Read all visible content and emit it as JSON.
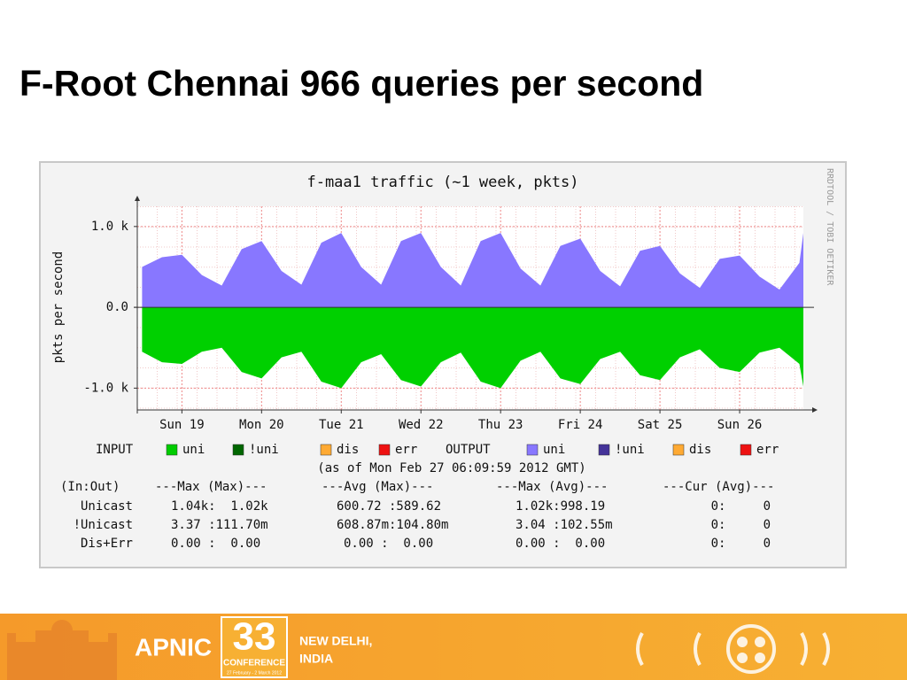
{
  "slide_title": "F-Root Chennai 966 queries per second",
  "chart_data": {
    "type": "area",
    "title": "f-maa1 traffic (~1 week, pkts)",
    "y_label": "pkts per second",
    "side_text": "RRDTOOL / TOBI OETIKER",
    "x": [
      0.5,
      0.75,
      1,
      1.25,
      1.5,
      1.75,
      2,
      2.25,
      2.5,
      2.75,
      3,
      3.25,
      3.5,
      3.75,
      4,
      4.25,
      4.5,
      4.75,
      5,
      5.25,
      5.5,
      5.75,
      6,
      6.25,
      6.5,
      6.75,
      7,
      7.25,
      7.5,
      7.75,
      8,
      8.25,
      8.5,
      8.75,
      8.8
    ],
    "xlim": [
      0.44,
      8.8
    ],
    "xticks": [
      {
        "value": 1,
        "label": "Sun 19"
      },
      {
        "value": 2,
        "label": "Mon 20"
      },
      {
        "value": 3,
        "label": "Tue 21"
      },
      {
        "value": 4,
        "label": "Wed 22"
      },
      {
        "value": 5,
        "label": "Thu 23"
      },
      {
        "value": 6,
        "label": "Fri 24"
      },
      {
        "value": 7,
        "label": "Sat 25"
      },
      {
        "value": 8,
        "label": "Sun 26"
      }
    ],
    "ylim": [
      -1270,
      1250
    ],
    "yticks": [
      {
        "value": 1000,
        "label": "1.0 k"
      },
      {
        "value": 0,
        "label": "0.0"
      },
      {
        "value": -1000,
        "label": "-1.0 k"
      }
    ],
    "grid": true,
    "series": [
      {
        "color": "#8877ff",
        "values": [
          500,
          620,
          650,
          400,
          270,
          720,
          820,
          450,
          280,
          800,
          920,
          500,
          280,
          820,
          920,
          500,
          270,
          820,
          920,
          480,
          270,
          760,
          850,
          450,
          260,
          700,
          760,
          420,
          240,
          600,
          640,
          380,
          220,
          550,
          920
        ]
      },
      {
        "color": "#00d000",
        "values": [
          -550,
          -680,
          -700,
          -550,
          -500,
          -800,
          -880,
          -620,
          -550,
          -920,
          -1000,
          -680,
          -580,
          -900,
          -980,
          -680,
          -560,
          -920,
          -1000,
          -660,
          -550,
          -880,
          -950,
          -640,
          -550,
          -840,
          -900,
          -620,
          -520,
          -750,
          -800,
          -560,
          -500,
          -700,
          -980
        ]
      }
    ],
    "legend": [
      {
        "group": "INPUT",
        "items": [
          {
            "name": "uni",
            "color": "#00cc00"
          },
          {
            "name": "!uni",
            "color": "#006600"
          },
          {
            "name": "dis",
            "color": "#ffaa33"
          },
          {
            "name": "err",
            "color": "#ee1111"
          }
        ]
      },
      {
        "group": "OUTPUT",
        "items": [
          {
            "name": "uni",
            "color": "#8877ff"
          },
          {
            "name": "!uni",
            "color": "#443399"
          },
          {
            "name": "dis",
            "color": "#ffaa33"
          },
          {
            "name": "err",
            "color": "#ee1111"
          }
        ]
      }
    ],
    "timestamp": "(as of Mon Feb 27 06:09:59 2012 GMT)",
    "stats": {
      "header": [
        "(In:Out)",
        "---Max (Max)---",
        "---Avg (Max)---",
        "---Max (Avg)---",
        "---Cur (Avg)---"
      ],
      "rows": [
        [
          "Unicast",
          "1.04k:  1.02k",
          "600.72 :589.62",
          "1.02k:998.19",
          "0:     0"
        ],
        [
          "!Unicast",
          "3.37 :111.70m",
          "608.87m:104.80m",
          "3.04 :102.55m",
          "0:     0"
        ],
        [
          "Dis+Err",
          "0.00 :  0.00",
          "0.00 :  0.00",
          "0.00 :  0.00",
          "0:     0"
        ]
      ]
    }
  },
  "footer": {
    "org": "APNIC",
    "number": "33",
    "event": "CONFERENCE",
    "dates": "27 February - 2 March 2012",
    "location": "NEW DELHI,",
    "country": "INDIA"
  }
}
